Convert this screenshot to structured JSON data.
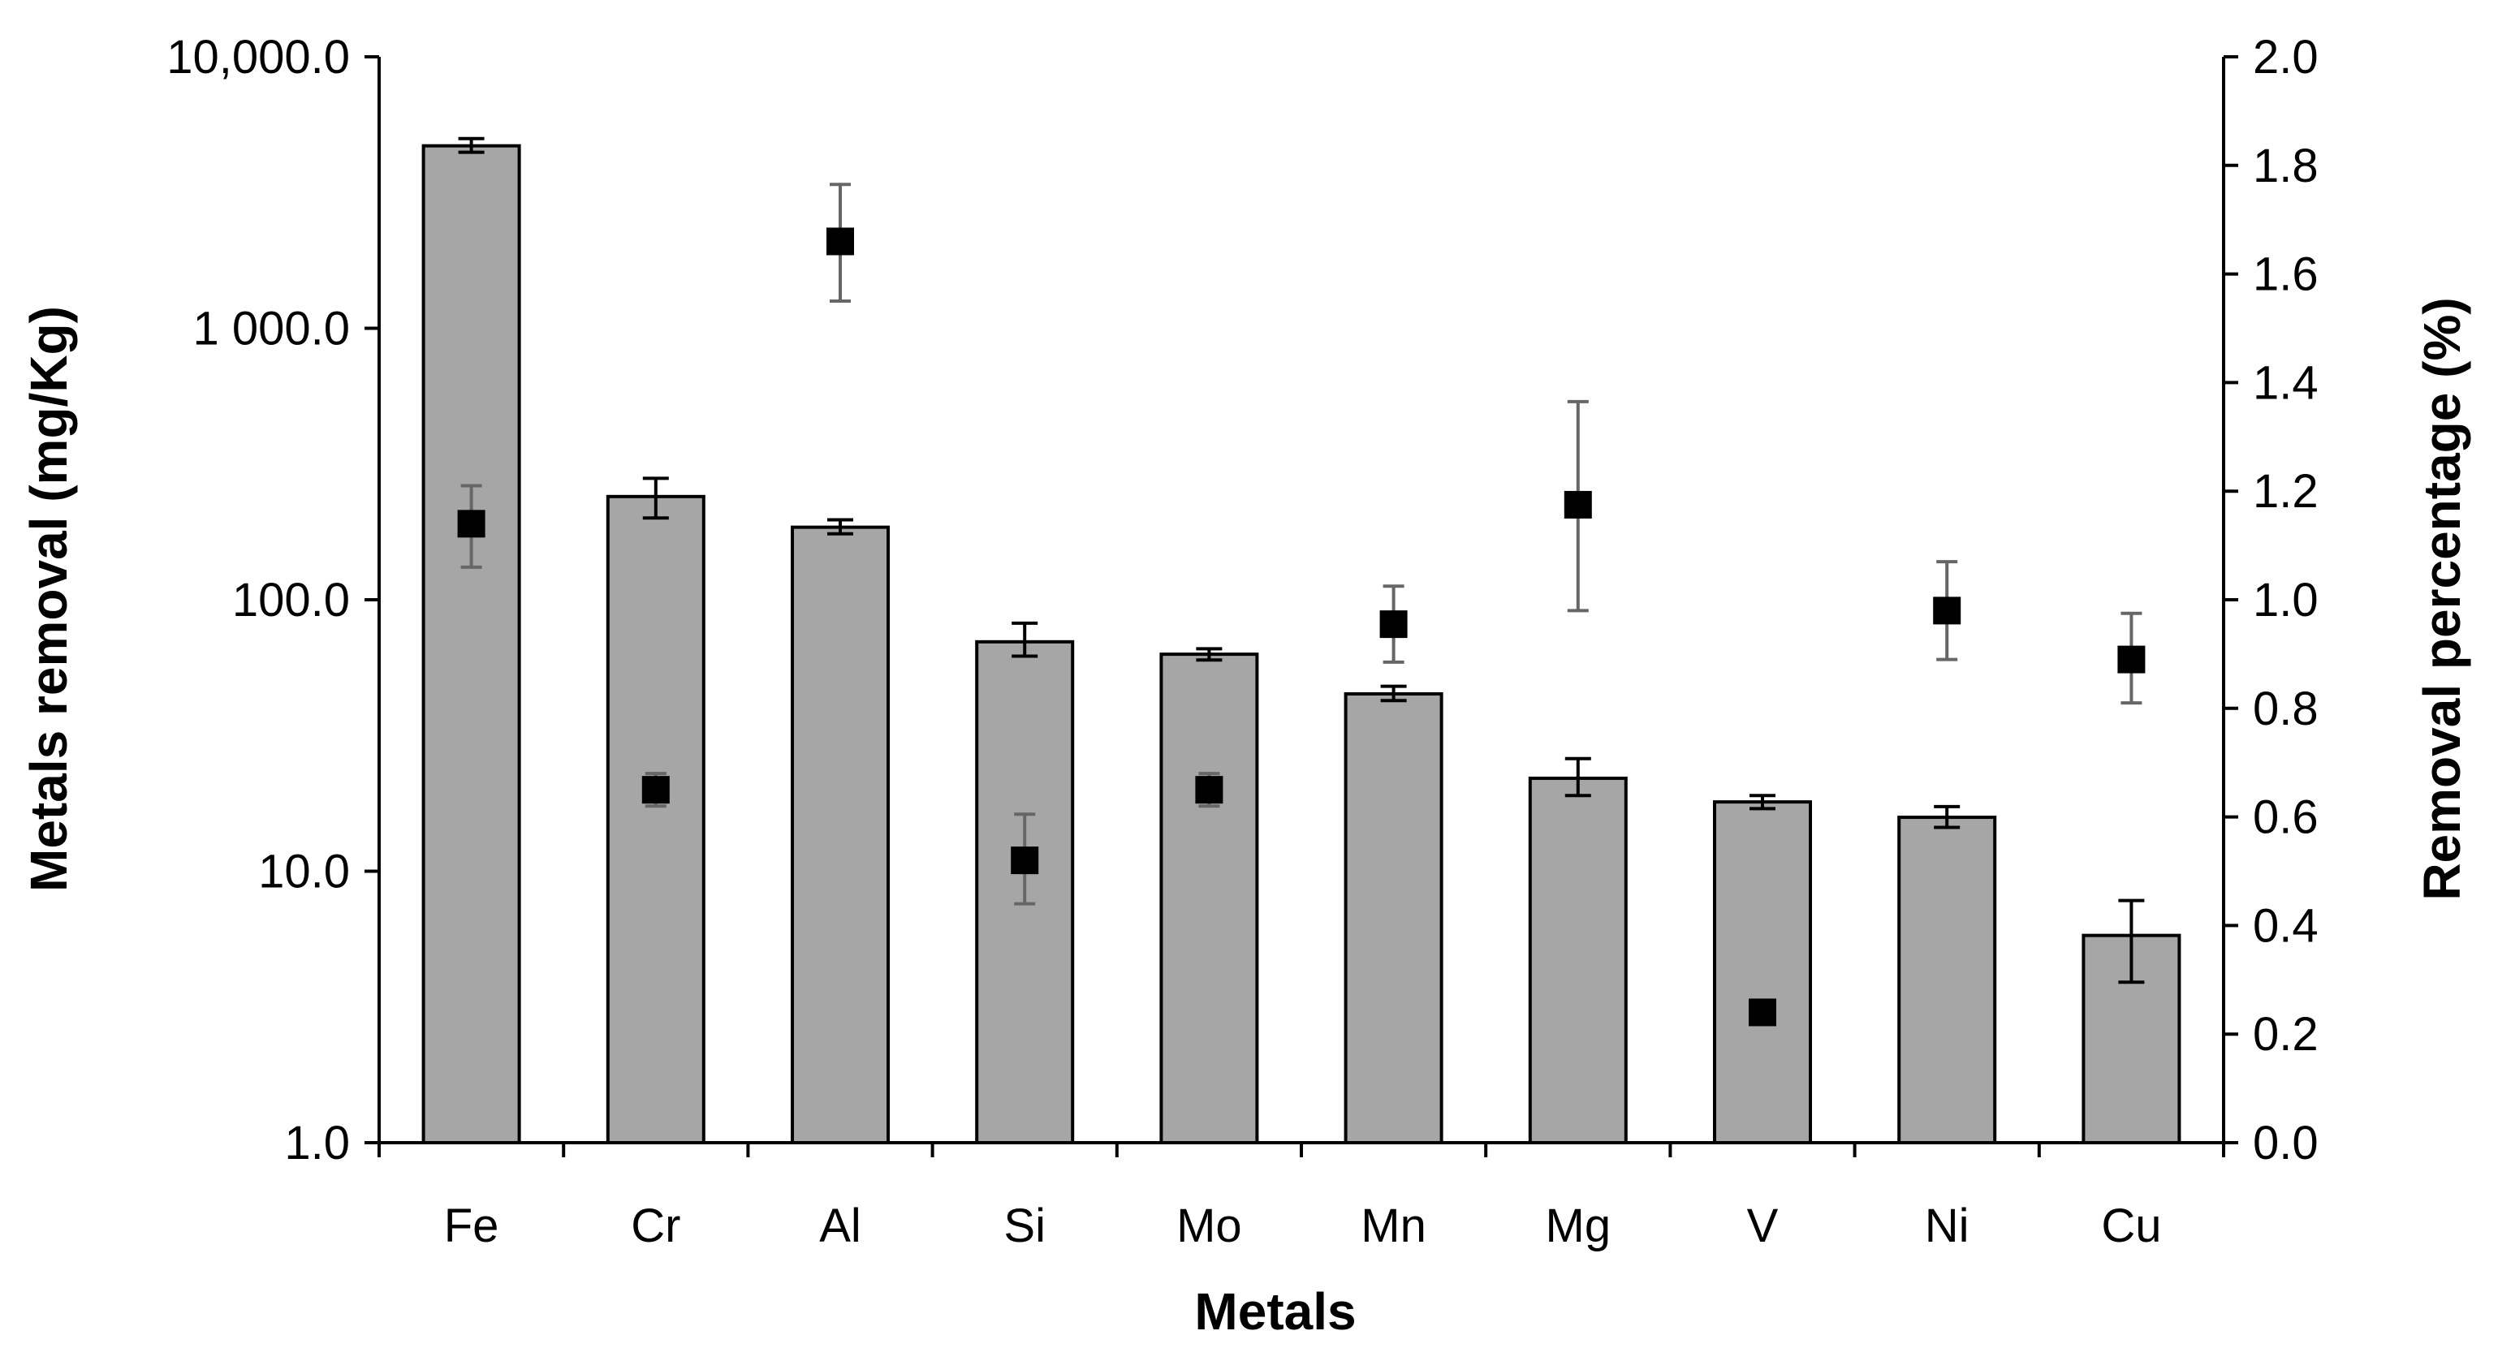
{
  "chart_data": {
    "type": "bar",
    "xlabel": "Metals",
    "ylabel": "Metals removal (mg/Kg)",
    "y2label": "Removal percentage (%)",
    "categories": [
      "Fe",
      "Cr",
      "Al",
      "Si",
      "Mo",
      "Mn",
      "Mg",
      "V",
      "Ni",
      "Cu"
    ],
    "y_scale": "log",
    "ylim": [
      1,
      10000
    ],
    "yticks": [
      1,
      10,
      100,
      1000,
      10000
    ],
    "ytick_labels": [
      "1.0",
      "10.0",
      "100.0",
      "1 000.0",
      "10,000.0"
    ],
    "y2lim": [
      0,
      2
    ],
    "y2ticks": [
      0,
      0.2,
      0.4,
      0.6,
      0.8,
      1.0,
      1.2,
      1.4,
      1.6,
      1.8,
      2.0
    ],
    "y2tick_labels": [
      "0.0",
      "0.2",
      "0.4",
      "0.6",
      "0.8",
      "1.0",
      "1.2",
      "1.4",
      "1.6",
      "1.8",
      "2.0"
    ],
    "series": [
      {
        "name": "Metals removal (mg/Kg)",
        "type": "bar",
        "axis": "left",
        "color": "#a6a6a6",
        "values": [
          4700,
          240,
          185,
          70,
          63,
          45,
          22,
          18,
          15.8,
          5.8
        ],
        "err_low": [
          4450,
          200,
          175,
          62,
          60,
          42.5,
          19,
          17,
          14.5,
          3.9
        ],
        "err_high": [
          5000,
          280,
          197,
          82,
          66,
          48,
          26,
          19,
          17.3,
          7.8
        ]
      },
      {
        "name": "Removal percentage (%)",
        "type": "scatter",
        "axis": "right",
        "color": "#000000",
        "values": [
          1.14,
          0.65,
          1.66,
          0.52,
          0.65,
          0.955,
          1.175,
          0.24,
          0.98,
          0.89
        ],
        "err_low": [
          1.06,
          0.62,
          1.55,
          0.44,
          0.62,
          0.885,
          0.98,
          null,
          0.89,
          0.81
        ],
        "err_high": [
          1.21,
          0.68,
          1.765,
          0.605,
          0.68,
          1.025,
          1.365,
          null,
          1.07,
          0.975
        ]
      }
    ]
  }
}
